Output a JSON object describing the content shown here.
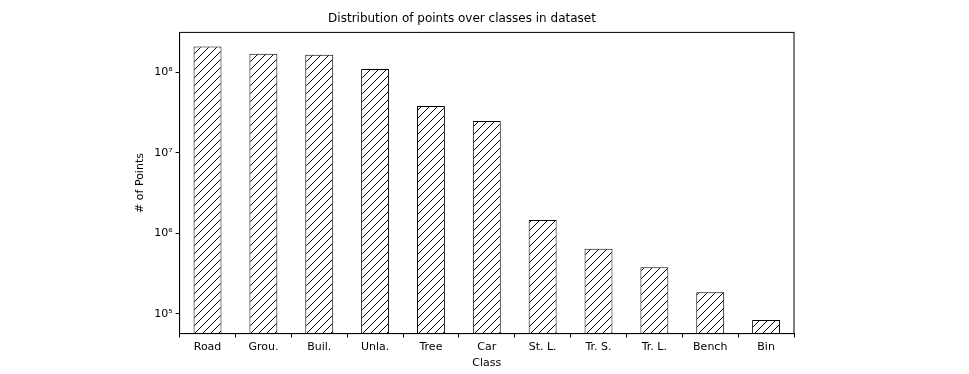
{
  "chart_data": {
    "type": "bar",
    "title": "Distribution of points over classes in dataset",
    "x_label": "Class",
    "y_label": "# of Points",
    "categories": [
      "Road",
      "Grou.",
      "Buil.",
      "Unla.",
      "Tree",
      "Car",
      "St. L.",
      "Tr. S.",
      "Tr. L.",
      "Bench",
      "Bin"
    ],
    "values": [
      207000000,
      169000000,
      164000000,
      109000000,
      38000000,
      24700000,
      1460000,
      645000,
      380000,
      185000,
      84000
    ],
    "color": "#000000",
    "log": "y",
    "ylim": [
      57000,
      310000000
    ],
    "yticks": [
      {
        "value": 100000,
        "label": "10⁵"
      },
      {
        "value": 1000000,
        "label": "10⁶"
      },
      {
        "value": 10000000,
        "label": "10⁷"
      },
      {
        "value": 100000000,
        "label": "10⁸"
      }
    ],
    "grid": false
  }
}
